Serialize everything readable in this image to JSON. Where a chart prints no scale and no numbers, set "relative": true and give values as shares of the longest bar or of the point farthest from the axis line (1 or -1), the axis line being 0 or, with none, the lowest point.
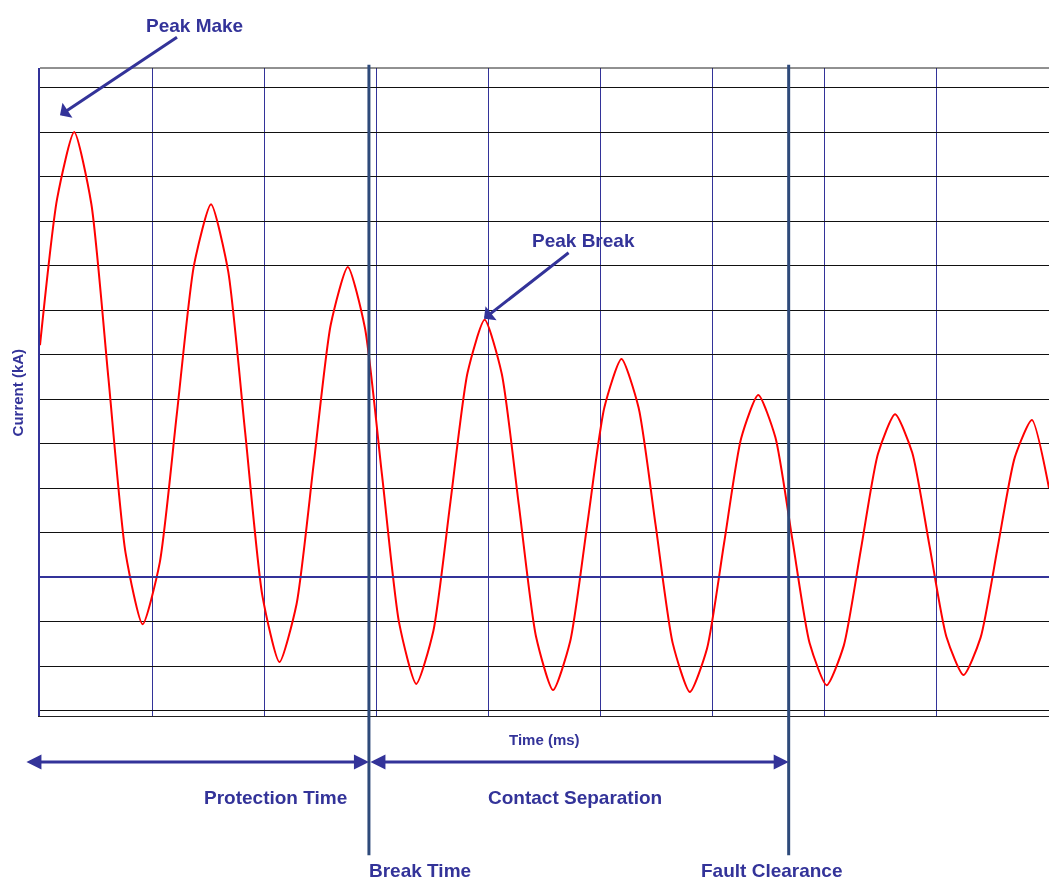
{
  "chart_data": {
    "type": "line",
    "relative": true,
    "xlabel": "Time (ms)",
    "ylabel": "Current (kA)",
    "categories": [
      null,
      null,
      null,
      null,
      null,
      null,
      null,
      null,
      null,
      null,
      null,
      null,
      null,
      null,
      null,
      null,
      null,
      null,
      null,
      null,
      null,
      null,
      null,
      null,
      null,
      null,
      null,
      null,
      null,
      null,
      null,
      null,
      null,
      null,
      null,
      null,
      null,
      null,
      null,
      null,
      null,
      null,
      null,
      null,
      null,
      null,
      null,
      null,
      null,
      null,
      null,
      null,
      null,
      null,
      null,
      null,
      null,
      null,
      null,
      null
    ],
    "series": [
      {
        "color": "#ff0000",
        "values": [
          0.521,
          0.85,
          1.0,
          0.839,
          0.447,
          0.055,
          -0.106,
          0.032,
          0.366,
          0.7,
          0.838,
          0.688,
          0.324,
          -0.041,
          -0.191,
          -0.061,
          0.253,
          0.567,
          0.697,
          0.56,
          0.229,
          -0.103,
          -0.24,
          -0.121,
          0.169,
          0.459,
          0.578,
          0.457,
          0.162,
          -0.133,
          -0.254,
          -0.145,
          0.118,
          0.381,
          0.49,
          0.381,
          0.116,
          -0.149,
          -0.258,
          -0.161,
          0.076,
          0.312,
          0.409,
          0.314,
          0.083,
          -0.148,
          -0.243,
          -0.154,
          0.062,
          0.277,
          0.366,
          0.28,
          0.073,
          -0.134,
          -0.22,
          -0.136,
          0.067,
          0.269,
          0.353,
          0.2
        ]
      }
    ],
    "annotations": [
      "Peak Make",
      "Peak Break",
      "Protection Time",
      "Contact Separation",
      "Break Time",
      "Fault Clearance"
    ],
    "ref_lines": [
      {
        "axis": "y",
        "value": 0,
        "color": "#333399"
      }
    ],
    "grid": true,
    "line_style": "solid",
    "marker": "none"
  }
}
